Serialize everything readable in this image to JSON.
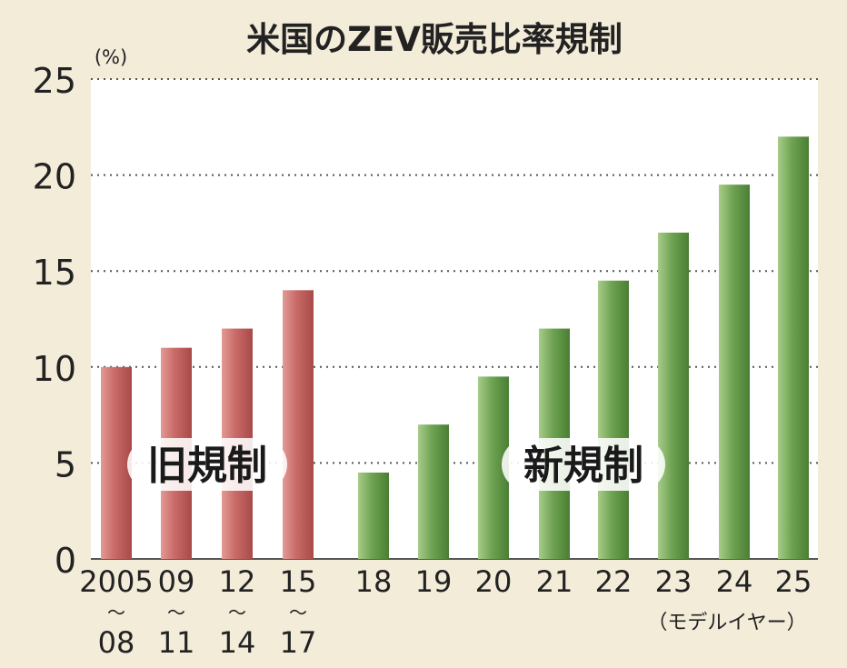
{
  "chart_data": {
    "type": "bar",
    "title": "米国のZEV販売比率規制",
    "unit_label": "(%)",
    "x_note": "（モデルイヤー）",
    "ylim": [
      0,
      25
    ],
    "yticks": [
      0,
      5,
      10,
      15,
      20,
      25
    ],
    "grid": "horizontal-dotted",
    "series": [
      {
        "name": "旧規制",
        "color": "#c45a5a",
        "categories": [
          [
            "2005",
            "〜",
            "08"
          ],
          [
            "09",
            "〜",
            "11"
          ],
          [
            "12",
            "〜",
            "14"
          ],
          [
            "15",
            "〜",
            "17"
          ]
        ],
        "values": [
          10,
          11,
          12,
          14
        ]
      },
      {
        "name": "新規制",
        "color": "#5f9a45",
        "categories": [
          [
            "18"
          ],
          [
            "19"
          ],
          [
            "20"
          ],
          [
            "21"
          ],
          [
            "22"
          ],
          [
            "23"
          ],
          [
            "24"
          ],
          [
            "25"
          ]
        ],
        "values": [
          4.5,
          7,
          9.5,
          12,
          14.5,
          17,
          19.5,
          22
        ]
      }
    ]
  }
}
